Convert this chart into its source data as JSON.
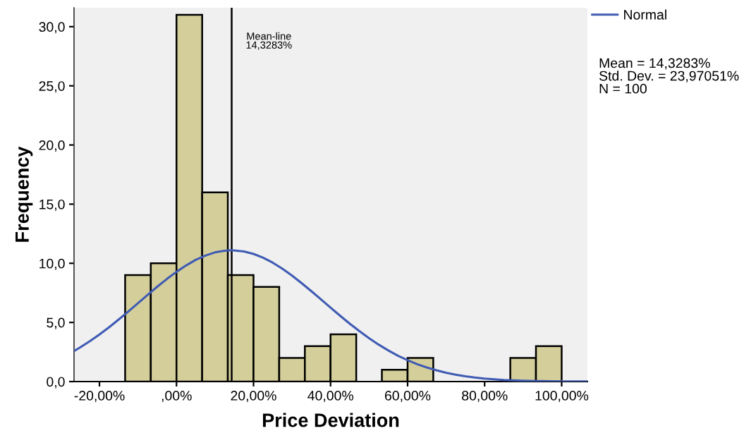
{
  "chart_data": {
    "type": "histogram",
    "xlabel": "Price Deviation",
    "ylabel": "Frequency",
    "series": [
      {
        "color": "#d3ce9a",
        "bins": [
          -13.33,
          -6.67,
          0,
          6.67,
          13.33,
          20,
          26.67,
          33.33,
          40,
          46.67,
          53.33,
          60,
          66.67,
          73.33,
          80,
          86.67,
          93.33,
          100
        ],
        "values": [
          9,
          10,
          31,
          16,
          9,
          8,
          2,
          3,
          4,
          0,
          1,
          2,
          0,
          0,
          0,
          2,
          3
        ]
      },
      {
        "type": "line",
        "name": "Normal",
        "color": "#3f5bb3",
        "x": [
          -26.6,
          -25,
          -22.5,
          -20,
          -17.5,
          -15,
          -12.5,
          -10,
          -7.5,
          -5,
          -2.5,
          0,
          2.5,
          5,
          7.5,
          10,
          12.5,
          14.33,
          17.5,
          20,
          22.5,
          25,
          27.5,
          30,
          32.5,
          35,
          37.5,
          40,
          42.5,
          45,
          47.5,
          50,
          52.5,
          55,
          57.5,
          60,
          62.5,
          65,
          67.5,
          70,
          72.5,
          75,
          77.5,
          80,
          85,
          90,
          95,
          100,
          106.7
        ],
        "values": [
          2.58,
          2.89,
          3.41,
          3.98,
          4.59,
          5.25,
          5.93,
          6.63,
          7.33,
          8.02,
          8.67,
          9.28,
          9.82,
          10.29,
          10.65,
          10.92,
          11.06,
          11.1,
          11.0,
          10.79,
          10.47,
          10.05,
          9.54,
          8.96,
          8.32,
          7.65,
          6.95,
          6.25,
          5.56,
          4.89,
          4.26,
          3.67,
          3.12,
          2.63,
          2.19,
          1.81,
          1.47,
          1.19,
          0.95,
          0.75,
          0.58,
          0.45,
          0.34,
          0.26,
          0.14,
          0.08,
          0.04,
          0.02,
          0.01
        ]
      }
    ],
    "xlim": [
      -26.6,
      106.7
    ],
    "xticks": [
      {
        "value": -20,
        "label": "-20,00%"
      },
      {
        "value": 0,
        "label": ",00%"
      },
      {
        "value": 20,
        "label": "20,00%"
      },
      {
        "value": 40,
        "label": "40,00%"
      },
      {
        "value": 60,
        "label": "60,00%"
      },
      {
        "value": 80,
        "label": "80,00%"
      },
      {
        "value": 100,
        "label": "100,00%"
      }
    ],
    "ylim": [
      0,
      31.6
    ],
    "yticks": [
      {
        "value": 0,
        "label": "0,0"
      },
      {
        "value": 5,
        "label": "5,0"
      },
      {
        "value": 10,
        "label": "10,0"
      },
      {
        "value": 15,
        "label": "15,0"
      },
      {
        "value": 20,
        "label": "20,0"
      },
      {
        "value": 25,
        "label": "25,0"
      },
      {
        "value": 30,
        "label": "30,0"
      }
    ],
    "ref_lines": [
      {
        "axis": "x",
        "value": 14.3283,
        "label": "Mean-line\n14,3283%",
        "color": "#000000"
      }
    ],
    "annotations": [
      "Mean = 14,3283%\nStd. Dev. = 23,97051%\nN = 100"
    ],
    "legend": "top right",
    "grid": false
  }
}
